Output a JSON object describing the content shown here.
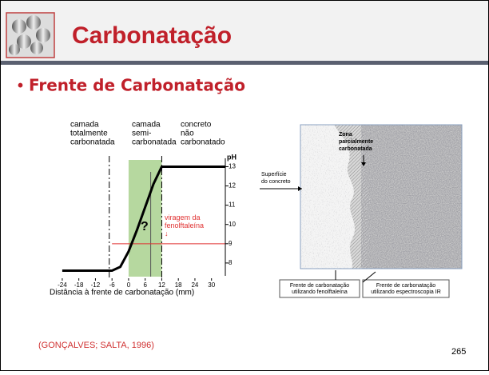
{
  "header": {
    "title": "Carbonatação"
  },
  "bullet": "Frente de Carbonatação",
  "chart_data": {
    "type": "line",
    "zone_labels": [
      [
        "camada",
        "totalmente",
        "carbonatada"
      ],
      [
        "camada",
        "semi-",
        "carbonatada"
      ],
      [
        "concreto",
        "não",
        "carbonatado"
      ]
    ],
    "x_label": "Distância à frente de carbonatação (mm)",
    "y_label": "pH",
    "x": [
      -24,
      -6,
      -3,
      0,
      3,
      6,
      9,
      12,
      35
    ],
    "values": [
      7.6,
      7.6,
      7.8,
      8.6,
      9.7,
      10.9,
      12.1,
      13,
      13
    ],
    "color": "#000000",
    "xlim": [
      -26,
      35
    ],
    "ylim": [
      7,
      13.6
    ],
    "xticks": [
      -24,
      -18,
      -12,
      -6,
      0,
      6,
      12,
      18,
      24,
      30
    ],
    "yticks": [
      8,
      9,
      10,
      11,
      12,
      13
    ],
    "shaded_range": [
      0,
      12
    ],
    "shade_color": "#a9d18e",
    "boundaries": [
      -7,
      12
    ],
    "indicator_x": 8,
    "threshold": {
      "value": 9,
      "label": [
        "viragem da",
        "fenolftaleína",
        "↓"
      ],
      "color": "#e03030"
    },
    "annotation": "?"
  },
  "diagram": {
    "zone": [
      "Zona",
      "parcialmente",
      "carbonatada"
    ],
    "surface": [
      "Superfície",
      "do concreto"
    ],
    "fronts": [
      [
        "Frente de carbonatação",
        "utilizando fenolftaleína"
      ],
      [
        "Frente de carbonatação",
        "utilizando espectroscopia IR"
      ]
    ]
  },
  "citation": "(GONÇALVES; SALTA, 1996)",
  "page_number": "265"
}
